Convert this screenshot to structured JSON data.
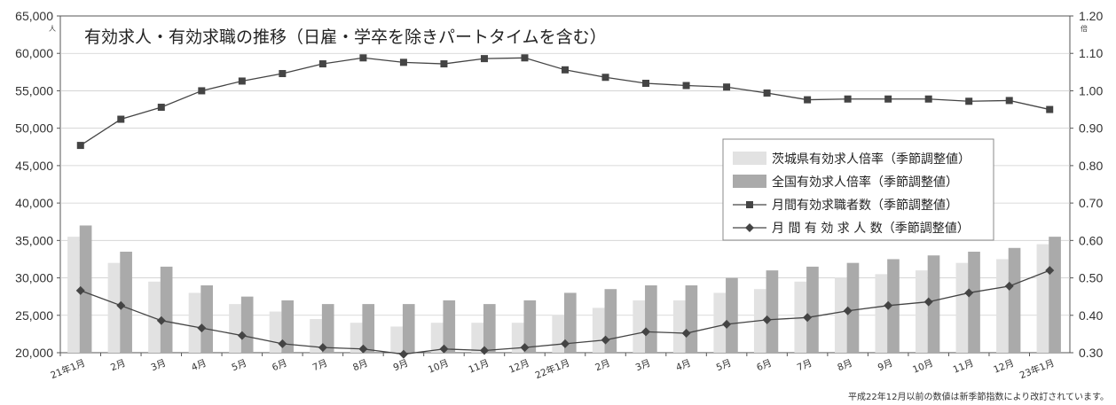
{
  "chart_data": {
    "type": "bar",
    "title": "有効求人・有効求職の推移（日雇・学卒を除きパートタイムを含む）",
    "footnote": "平成22年12月以前の数値は新季節指数により改訂されています。",
    "left_axis": {
      "unit": "人",
      "ylim": [
        20000,
        65000
      ],
      "ticks": [
        "20,000",
        "25,000",
        "30,000",
        "35,000",
        "40,000",
        "45,000",
        "50,000",
        "55,000",
        "60,000",
        "65,000"
      ]
    },
    "right_axis": {
      "unit": "倍",
      "ylim": [
        0.3,
        1.2
      ],
      "ticks": [
        "0.30",
        "0.40",
        "0.50",
        "0.60",
        "0.70",
        "0.80",
        "0.90",
        "1.00",
        "1.10",
        "1.20"
      ]
    },
    "categories": [
      "21年1月",
      "2月",
      "3月",
      "4月",
      "5月",
      "6月",
      "7月",
      "8月",
      "9月",
      "10月",
      "11月",
      "12月",
      "22年1月",
      "2月",
      "3月",
      "4月",
      "5月",
      "6月",
      "7月",
      "8月",
      "9月",
      "10月",
      "11月",
      "12月",
      "23年1月"
    ],
    "series": [
      {
        "name": "茨城県有効求人倍率（季節調整値）",
        "kind": "bar",
        "axis": "right",
        "color": "#e2e2e2",
        "values": [
          0.61,
          0.54,
          0.49,
          0.46,
          0.43,
          0.41,
          0.39,
          0.38,
          0.37,
          0.38,
          0.38,
          0.38,
          0.4,
          0.42,
          0.44,
          0.44,
          0.46,
          0.47,
          0.49,
          0.5,
          0.51,
          0.52,
          0.54,
          0.55,
          0.59
        ]
      },
      {
        "name": "全国有効求人倍率（季節調整値）",
        "kind": "bar",
        "axis": "right",
        "color": "#aaaaaa",
        "values": [
          0.64,
          0.57,
          0.53,
          0.48,
          0.45,
          0.44,
          0.43,
          0.43,
          0.43,
          0.44,
          0.43,
          0.44,
          0.46,
          0.47,
          0.48,
          0.48,
          0.5,
          0.52,
          0.53,
          0.54,
          0.55,
          0.56,
          0.57,
          0.58,
          0.61
        ]
      },
      {
        "name": "月間有効求職者数（季節調整値）",
        "kind": "line",
        "marker": "square",
        "axis": "left",
        "color": "#444444",
        "values": [
          47700,
          51200,
          52800,
          55000,
          56300,
          57300,
          58600,
          59400,
          58800,
          58600,
          59300,
          59400,
          57800,
          56800,
          56000,
          55700,
          55500,
          54700,
          53800,
          53900,
          53900,
          53900,
          53600,
          53700,
          52500
        ]
      },
      {
        "name": "月間有効求人数（季節調整値）",
        "kind": "line",
        "marker": "diamond",
        "axis": "left",
        "color": "#444444",
        "values": [
          28300,
          26300,
          24300,
          23300,
          22300,
          21200,
          20700,
          20500,
          19800,
          20500,
          20300,
          20700,
          21200,
          21700,
          22800,
          22600,
          23800,
          24400,
          24700,
          25600,
          26300,
          26800,
          28000,
          28900,
          31000
        ]
      }
    ],
    "legend_labels": [
      "茨城県有効求人倍率（季節調整値）",
      "全国有効求人倍率（季節調整値）",
      "月間有効求職者数（季節調整値）",
      "月 間 有 効 求 人 数（季節調整値）"
    ],
    "legend_position": "right-middle"
  }
}
